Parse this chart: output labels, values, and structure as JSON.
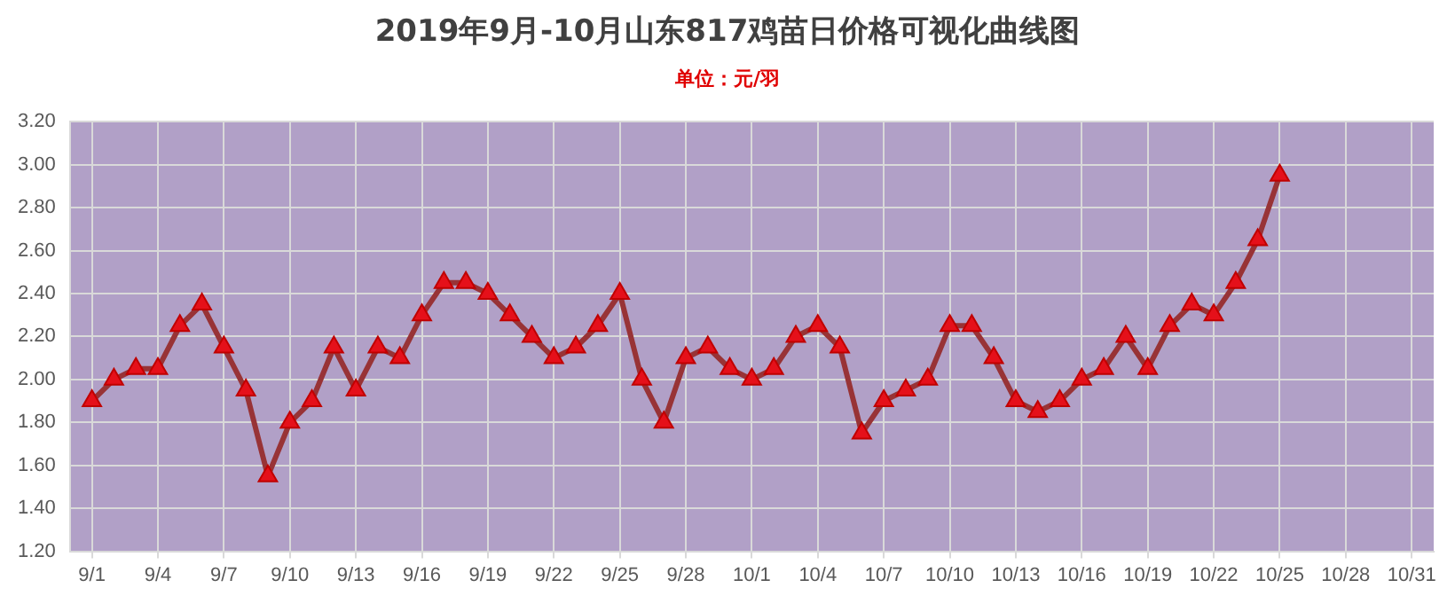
{
  "chart_data": {
    "type": "line",
    "title": "2019年9月-10月山东817鸡苗日价格可视化曲线图",
    "subtitle": "单位：元/羽",
    "x": [
      "--09-01",
      "--09-02",
      "--09-03",
      "--09-04",
      "--09-05",
      "--09-06",
      "--09-07",
      "--09-08",
      "--09-09",
      "--09-10",
      "--09-11",
      "--09-12",
      "--09-13",
      "--09-14",
      "--09-15",
      "--09-16",
      "--09-17",
      "--09-18",
      "--09-19",
      "--09-20",
      "--09-21",
      "--09-22",
      "--09-23",
      "--09-24",
      "--09-25",
      "--09-26",
      "--09-27",
      "--09-28",
      "--09-29",
      "--09-30",
      "--10-01",
      "--10-02",
      "--10-03",
      "--10-04",
      "--10-05",
      "--10-06",
      "--10-07",
      "--10-08",
      "--10-09",
      "--10-10",
      "--10-11",
      "--10-12",
      "--10-13",
      "--10-14",
      "--10-15",
      "--10-16",
      "--10-17",
      "--10-18",
      "--10-19",
      "--10-20",
      "--10-21",
      "--10-22",
      "--10-23",
      "--10-24",
      "--10-25"
    ],
    "series": [
      {
        "color": "#983336",
        "values": [
          1.9,
          2.0,
          2.05,
          2.05,
          2.25,
          2.35,
          2.15,
          1.95,
          1.55,
          1.8,
          1.9,
          2.15,
          1.95,
          2.15,
          2.1,
          2.3,
          2.45,
          2.45,
          2.4,
          2.3,
          2.2,
          2.1,
          2.15,
          2.25,
          2.4,
          2.0,
          1.8,
          2.1,
          2.15,
          2.05,
          2.0,
          2.05,
          2.2,
          2.25,
          2.15,
          1.75,
          1.9,
          1.95,
          2.0,
          2.25,
          2.25,
          2.1,
          1.9,
          1.85,
          1.9,
          2.0,
          2.05,
          2.2,
          2.05,
          2.25,
          2.35,
          2.3,
          2.45,
          2.65,
          2.95
        ]
      }
    ],
    "xlim": [
      "--08-31",
      "--11-01"
    ],
    "xticks": [
      {
        "value": "--09-01",
        "label": "9/1"
      },
      {
        "value": "--09-04",
        "label": "9/4"
      },
      {
        "value": "--09-07",
        "label": "9/7"
      },
      {
        "value": "--09-10",
        "label": "9/10"
      },
      {
        "value": "--09-13",
        "label": "9/13"
      },
      {
        "value": "--09-16",
        "label": "9/16"
      },
      {
        "value": "--09-19",
        "label": "9/19"
      },
      {
        "value": "--09-22",
        "label": "9/22"
      },
      {
        "value": "--09-25",
        "label": "9/25"
      },
      {
        "value": "--09-28",
        "label": "9/28"
      },
      {
        "value": "--10-01",
        "label": "10/1"
      },
      {
        "value": "--10-04",
        "label": "10/4"
      },
      {
        "value": "--10-07",
        "label": "10/7"
      },
      {
        "value": "--10-10",
        "label": "10/10"
      },
      {
        "value": "--10-13",
        "label": "10/13"
      },
      {
        "value": "--10-16",
        "label": "10/16"
      },
      {
        "value": "--10-19",
        "label": "10/19"
      },
      {
        "value": "--10-22",
        "label": "10/22"
      },
      {
        "value": "--10-25",
        "label": "10/25"
      },
      {
        "value": "--10-28",
        "label": "10/28"
      },
      {
        "value": "--10-31",
        "label": "10/31"
      }
    ],
    "ylim": [
      1.2,
      3.2
    ],
    "yticks": [
      {
        "value": 1.2,
        "label": "1.20"
      },
      {
        "value": 1.4,
        "label": "1.40"
      },
      {
        "value": 1.6,
        "label": "1.60"
      },
      {
        "value": 1.8,
        "label": "1.80"
      },
      {
        "value": 2.0,
        "label": "2.00"
      },
      {
        "value": 2.2,
        "label": "2.20"
      },
      {
        "value": 2.4,
        "label": "2.40"
      },
      {
        "value": 2.6,
        "label": "2.60"
      },
      {
        "value": 2.8,
        "label": "2.80"
      },
      {
        "value": 3.0,
        "label": "3.00"
      },
      {
        "value": 3.2,
        "label": "3.20"
      }
    ],
    "grid": true,
    "legend": false,
    "marker": "triangle",
    "line_style": "solid"
  }
}
